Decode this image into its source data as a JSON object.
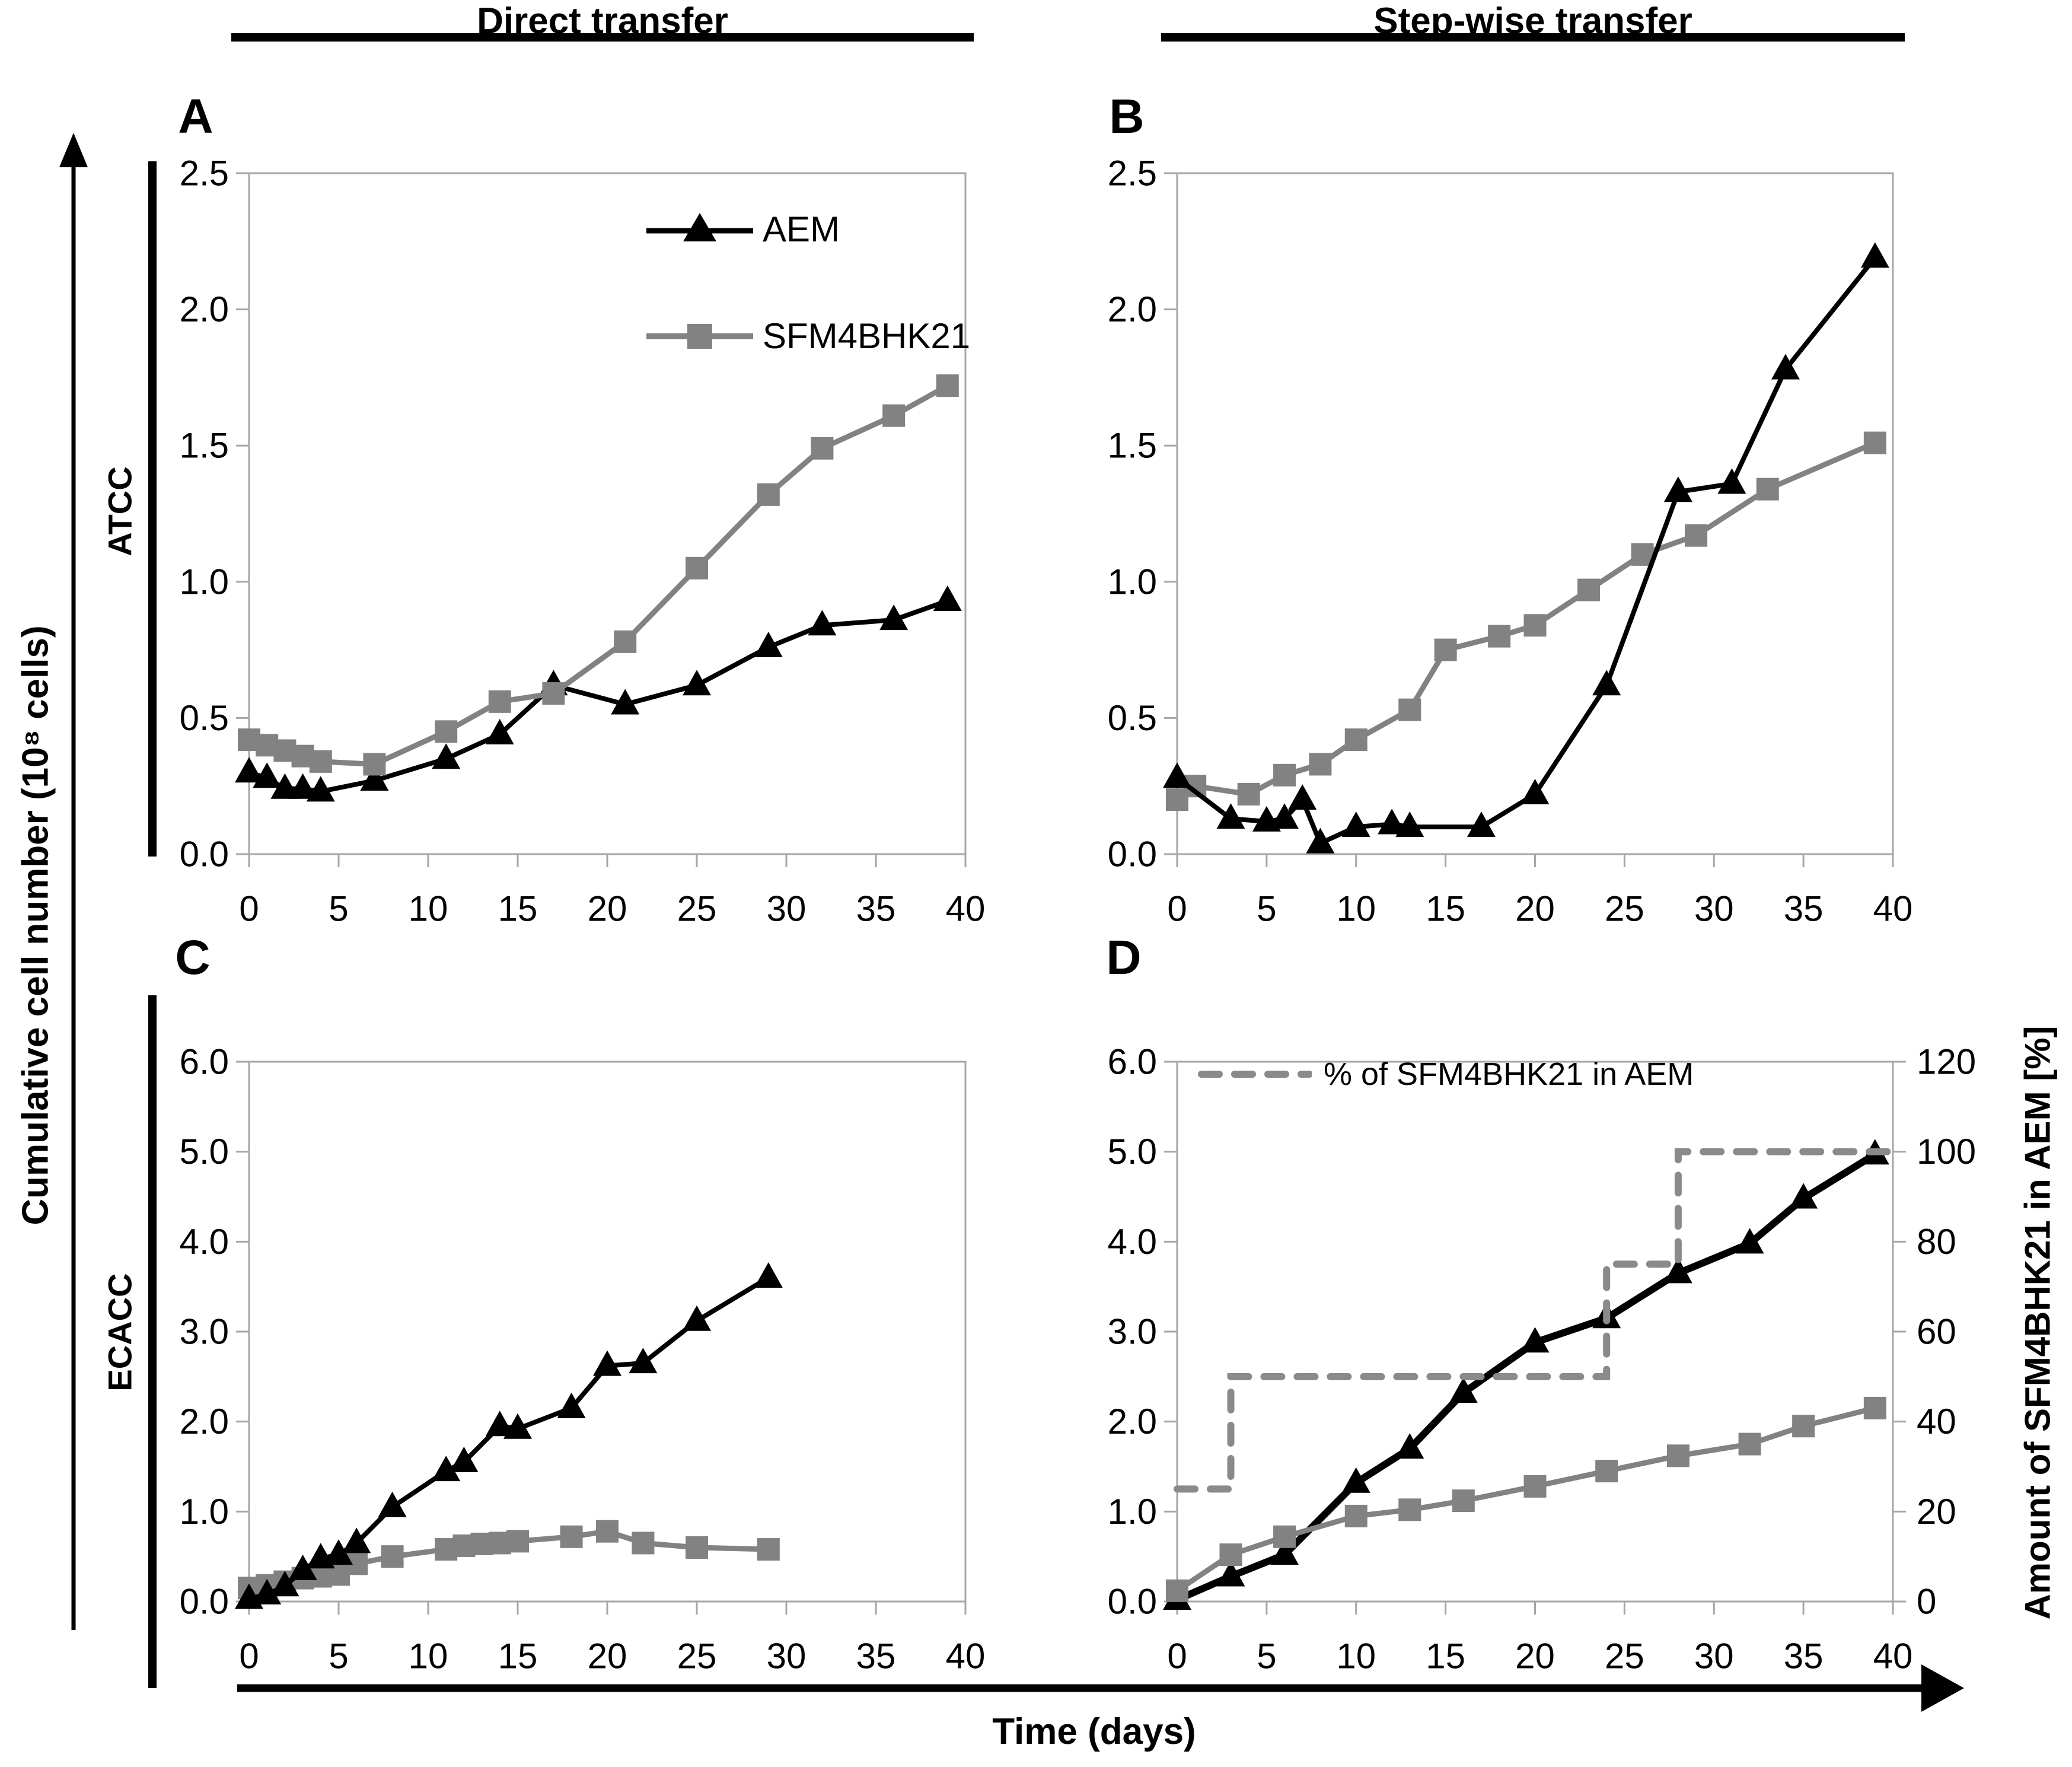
{
  "figure": {
    "column_headers": [
      "Direct transfer",
      "Step-wise transfer"
    ],
    "y_axis_label": "Cumulative cell number (10⁸ cells)",
    "x_axis_label": "Time (days)",
    "legend": {
      "aem": "AEM",
      "sfm": "SFM4BHK21",
      "pct": "% of SFM4BHK21 in AEM"
    }
  },
  "colors": {
    "aem": "#000000",
    "sfm": "#828282",
    "pct_line": "#8a8a8a",
    "axis": "#a6a6a6"
  },
  "chart_data": [
    {
      "panel": "A",
      "row_label": "ATCC",
      "column": "Direct transfer",
      "type": "line",
      "xlim": [
        0,
        40
      ],
      "xticks": [
        "0",
        "5",
        "10",
        "15",
        "20",
        "25",
        "30",
        "35",
        "40"
      ],
      "ylim": [
        0,
        2.5
      ],
      "yticks": [
        "0.0",
        "0.5",
        "1.0",
        "1.5",
        "2.0",
        "2.5"
      ],
      "has_legend": true,
      "series": [
        {
          "name": "AEM",
          "marker": "triangle",
          "color": "#000000",
          "x": [
            0,
            1,
            2,
            3,
            4,
            7,
            11,
            14,
            17,
            21,
            25,
            29,
            32,
            36,
            39
          ],
          "y": [
            0.3,
            0.28,
            0.24,
            0.24,
            0.23,
            0.27,
            0.35,
            0.44,
            0.62,
            0.55,
            0.62,
            0.76,
            0.84,
            0.86,
            0.93
          ]
        },
        {
          "name": "SFM4BHK21",
          "marker": "square",
          "color": "#828282",
          "x": [
            0,
            1,
            2,
            3,
            4,
            7,
            11,
            14,
            17,
            21,
            25,
            29,
            32,
            36,
            39
          ],
          "y": [
            0.42,
            0.4,
            0.38,
            0.36,
            0.34,
            0.33,
            0.45,
            0.56,
            0.59,
            0.78,
            1.05,
            1.32,
            1.49,
            1.61,
            1.72
          ]
        }
      ]
    },
    {
      "panel": "B",
      "row_label": "ATCC",
      "column": "Step-wise transfer",
      "type": "line",
      "xlim": [
        0,
        40
      ],
      "xticks": [
        "0",
        "5",
        "10",
        "15",
        "20",
        "25",
        "30",
        "35",
        "40"
      ],
      "ylim": [
        0,
        2.5
      ],
      "yticks": [
        "0.0",
        "0.5",
        "1.0",
        "1.5",
        "2.0",
        "2.5"
      ],
      "has_legend": false,
      "series": [
        {
          "name": "SFM4BHK21",
          "marker": "square",
          "color": "#828282",
          "x": [
            0,
            1,
            4,
            6,
            8,
            10,
            13,
            15,
            18,
            20,
            23,
            26,
            29,
            33,
            39
          ],
          "y": [
            0.2,
            0.25,
            0.22,
            0.29,
            0.33,
            0.42,
            0.53,
            0.75,
            0.8,
            0.84,
            0.97,
            1.1,
            1.17,
            1.34,
            1.51
          ]
        },
        {
          "name": "AEM",
          "marker": "triangle",
          "color": "#000000",
          "x": [
            0,
            3,
            5,
            6,
            7,
            8,
            10,
            12,
            13,
            17,
            20,
            24,
            28,
            31,
            34,
            39
          ],
          "y": [
            0.28,
            0.13,
            0.12,
            0.13,
            0.2,
            0.04,
            0.1,
            0.11,
            0.1,
            0.1,
            0.22,
            0.62,
            1.33,
            1.36,
            1.78,
            2.19
          ]
        }
      ]
    },
    {
      "panel": "C",
      "row_label": "ECACC",
      "column": "Direct transfer",
      "type": "line",
      "xlim": [
        0,
        40
      ],
      "xticks": [
        "0",
        "5",
        "10",
        "15",
        "20",
        "25",
        "30",
        "35",
        "40"
      ],
      "ylim": [
        0,
        6.0
      ],
      "yticks": [
        "0.0",
        "1.0",
        "2.0",
        "3.0",
        "4.0",
        "5.0",
        "6.0"
      ],
      "has_legend": false,
      "series": [
        {
          "name": "SFM4BHK21",
          "marker": "square",
          "color": "#828282",
          "x": [
            0,
            1,
            2,
            3,
            4,
            5,
            6,
            8,
            11,
            12,
            13,
            14,
            15,
            18,
            20,
            22,
            25,
            29
          ],
          "y": [
            0.15,
            0.18,
            0.22,
            0.26,
            0.28,
            0.3,
            0.42,
            0.5,
            0.58,
            0.62,
            0.64,
            0.65,
            0.67,
            0.72,
            0.78,
            0.65,
            0.6,
            0.58
          ]
        },
        {
          "name": "AEM",
          "marker": "triangle",
          "color": "#000000",
          "x": [
            0,
            1,
            2,
            3,
            4,
            5,
            6,
            8,
            11,
            12,
            14,
            15,
            18,
            20,
            22,
            25,
            29
          ],
          "y": [
            0.03,
            0.08,
            0.17,
            0.35,
            0.48,
            0.52,
            0.65,
            1.05,
            1.45,
            1.55,
            1.95,
            1.92,
            2.15,
            2.62,
            2.65,
            3.12,
            3.6
          ]
        }
      ]
    },
    {
      "panel": "D",
      "row_label": "ECACC",
      "column": "Step-wise transfer",
      "type": "line",
      "xlim": [
        0,
        40
      ],
      "xticks": [
        "0",
        "5",
        "10",
        "15",
        "20",
        "25",
        "30",
        "35",
        "40"
      ],
      "ylim": [
        0,
        6.0
      ],
      "yticks": [
        "0.0",
        "1.0",
        "2.0",
        "3.0",
        "4.0",
        "5.0",
        "6.0"
      ],
      "y2lim": [
        0,
        120
      ],
      "y2ticks": [
        "0",
        "20",
        "40",
        "60",
        "80",
        "100",
        "120"
      ],
      "y2label": "Amount of SFM4BHK21 in AEM [%]",
      "has_legend": false,
      "series": [
        {
          "name": "AEM",
          "marker": "triangle",
          "color": "#000000",
          "x": [
            0,
            3,
            6,
            10,
            13,
            16,
            20,
            24,
            28,
            32,
            35,
            39
          ],
          "y": [
            0.02,
            0.28,
            0.52,
            1.32,
            1.7,
            2.32,
            2.88,
            3.15,
            3.65,
            3.98,
            4.48,
            4.97
          ]
        },
        {
          "name": "SFM4BHK21",
          "marker": "square",
          "color": "#828282",
          "x": [
            0,
            3,
            6,
            10,
            13,
            16,
            20,
            24,
            28,
            32,
            35,
            39
          ],
          "y": [
            0.12,
            0.52,
            0.72,
            0.95,
            1.02,
            1.12,
            1.28,
            1.45,
            1.62,
            1.75,
            1.95,
            2.15
          ]
        }
      ],
      "pct_series": {
        "name": "% of SFM4BHK21 in AEM",
        "axis": "y2",
        "style": "dashed",
        "color": "#8a8a8a",
        "x": [
          0,
          3,
          3,
          24,
          24,
          28,
          28,
          40
        ],
        "y": [
          25,
          25,
          50,
          50,
          75,
          75,
          100,
          100
        ]
      }
    }
  ]
}
